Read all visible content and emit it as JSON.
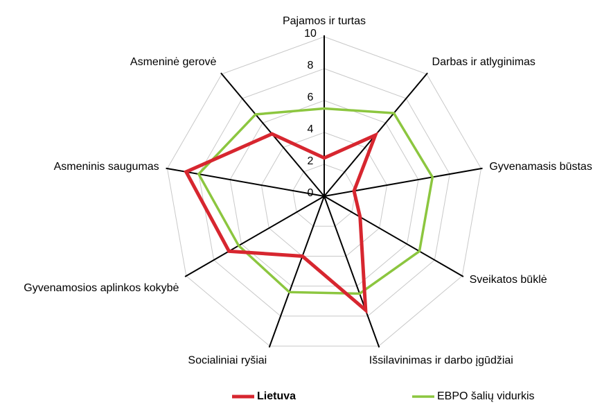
{
  "chart_data": {
    "type": "radar",
    "categories": [
      "Pajamos ir turtas",
      "Darbas ir atlyginimas",
      "Gyvenamasis būstas",
      "Sveikatos būklė",
      "Išsilavinimas ir darbo įgūdžiai",
      "Socialiniai ryšiai",
      "Gyvenamosios aplinkos kokybė",
      "Asmeninis saugumas",
      "Asmeninė gerovė"
    ],
    "series": [
      {
        "name": "Lietuva",
        "color": "#d7262f",
        "values": [
          2.4,
          5.0,
          1.9,
          2.6,
          7.6,
          4.0,
          6.9,
          8.8,
          5.1
        ]
      },
      {
        "name": "EBPO šalių vidurkis",
        "color": "#8cc63f",
        "values": [
          5.5,
          6.8,
          6.9,
          6.9,
          6.5,
          6.4,
          6.2,
          8.0,
          6.7
        ]
      }
    ],
    "ylim": [
      0,
      10
    ],
    "yticks": [
      0,
      2,
      4,
      6,
      8,
      10
    ],
    "grid": true,
    "legend": "bottom"
  }
}
